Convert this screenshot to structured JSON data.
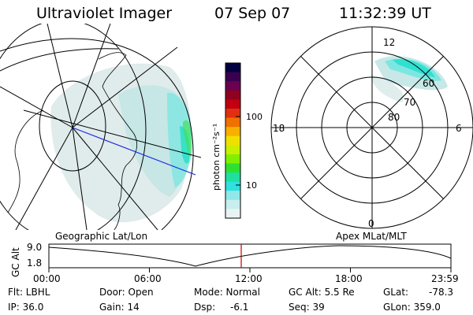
{
  "header": {
    "title": "Ultraviolet Imager",
    "date": "07 Sep 07",
    "time": "11:32:39 UT"
  },
  "left_panel": {
    "label": "Geographic Lat/Lon"
  },
  "colorbar": {
    "unit": "photon cm⁻²s⁻¹",
    "ticks": [
      "100",
      "10"
    ],
    "colors": [
      "#000040",
      "#3a0050",
      "#6a0050",
      "#900020",
      "#c00010",
      "#e03010",
      "#f07000",
      "#f8b000",
      "#f0e000",
      "#c8f000",
      "#80f000",
      "#30e030",
      "#20e0a0",
      "#30e0e0",
      "#90e8e8",
      "#c8eeee",
      "#e8f4f4"
    ]
  },
  "right_panel": {
    "label": "Apex  MLat/MLT",
    "mlt_labels": {
      "top": "12",
      "bottom": "0",
      "left": "18",
      "right": "6"
    },
    "mlat_labels": [
      "60",
      "70",
      "80"
    ]
  },
  "altitude_plot": {
    "ylabel": "GC Alt",
    "yticks": [
      "9.0",
      "1.8"
    ],
    "xticks": [
      "00:00",
      "06:00",
      "12:00",
      "18:00",
      "23:59"
    ],
    "marker_time": "11:32:39"
  },
  "info": {
    "flt": "Flt: LBHL",
    "ip": "IP: 36.0",
    "door": "Door: Open",
    "gain": "Gain: 14",
    "mode": "Mode: Normal",
    "dsp_label": "Dsp:",
    "dsp_value": "-6.1",
    "gcalt": "GC Alt: 5.5 Re",
    "seq": "Seq: 39",
    "glat_label": "GLat:",
    "glat_value": "-78.3",
    "glon": "GLon: 359.0"
  }
}
